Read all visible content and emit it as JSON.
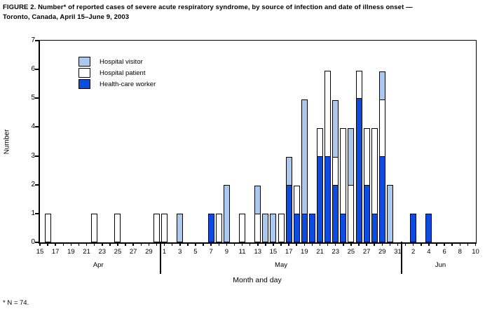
{
  "figure": {
    "title_line1": "FIGURE 2. Number* of reported cases of severe acute respiratory syndrome, by source of infection and date of illness onset —",
    "title_line2": "Toronto, Canada, April 15–June 9, 2003",
    "footnote": "* N = 74."
  },
  "legend": {
    "items": [
      {
        "series": "visitor",
        "label": "Hospital visitor",
        "color": "#abc9ee"
      },
      {
        "series": "patient",
        "label": "Hospital patient",
        "color": "#ffffff"
      },
      {
        "series": "hcw",
        "label": "Health-care worker",
        "color": "#0a4de0"
      }
    ]
  },
  "chart_data": {
    "type": "bar",
    "stacked": true,
    "title": "FIGURE 2. Number* of reported cases of severe acute respiratory syndrome, by source of infection and date of illness onset — Toronto, Canada, April 15–June 9, 2003",
    "xlabel": "Month and day",
    "ylabel": "Number",
    "ylim": [
      0,
      7
    ],
    "yticks": [
      0,
      1,
      2,
      3,
      4,
      5,
      6,
      7
    ],
    "total_n": 74,
    "months": [
      {
        "name": "Apr",
        "first_day": 15,
        "last_day": 30,
        "labeled_days": [
          15,
          17,
          19,
          21,
          23,
          25,
          27,
          29
        ]
      },
      {
        "name": "May",
        "first_day": 1,
        "last_day": 31,
        "labeled_days": [
          1,
          3,
          5,
          7,
          9,
          11,
          13,
          15,
          17,
          19,
          21,
          23,
          25,
          27,
          29,
          31
        ]
      },
      {
        "name": "Jun",
        "first_day": 1,
        "last_day": 10,
        "labeled_days": [
          2,
          4,
          6,
          8,
          10
        ]
      }
    ],
    "series_order_bottom_to_top": [
      "hcw",
      "patient",
      "visitor"
    ],
    "series_names": {
      "hcw": "Health-care worker",
      "patient": "Hospital patient",
      "visitor": "Hospital visitor"
    },
    "colors": {
      "hcw": "#0a4de0",
      "patient": "#ffffff",
      "visitor": "#abc9ee",
      "outline": "#000000"
    },
    "bars": [
      {
        "date": "Apr 16",
        "hcw": 0,
        "patient": 1,
        "visitor": 0
      },
      {
        "date": "Apr 22",
        "hcw": 0,
        "patient": 1,
        "visitor": 0
      },
      {
        "date": "Apr 25",
        "hcw": 0,
        "patient": 1,
        "visitor": 0
      },
      {
        "date": "Apr 30",
        "hcw": 0,
        "patient": 1,
        "visitor": 0
      },
      {
        "date": "May 1",
        "hcw": 0,
        "patient": 1,
        "visitor": 0
      },
      {
        "date": "May 3",
        "hcw": 0,
        "patient": 0,
        "visitor": 1
      },
      {
        "date": "May 7",
        "hcw": 1,
        "patient": 0,
        "visitor": 0
      },
      {
        "date": "May 8",
        "hcw": 0,
        "patient": 1,
        "visitor": 0
      },
      {
        "date": "May 9",
        "hcw": 0,
        "patient": 0,
        "visitor": 2
      },
      {
        "date": "May 11",
        "hcw": 0,
        "patient": 1,
        "visitor": 0
      },
      {
        "date": "May 13",
        "hcw": 0,
        "patient": 1,
        "visitor": 1
      },
      {
        "date": "May 14",
        "hcw": 0,
        "patient": 0,
        "visitor": 1
      },
      {
        "date": "May 15",
        "hcw": 0,
        "patient": 0,
        "visitor": 1
      },
      {
        "date": "May 16",
        "hcw": 0,
        "patient": 1,
        "visitor": 0
      },
      {
        "date": "May 17",
        "hcw": 2,
        "patient": 0,
        "visitor": 1
      },
      {
        "date": "May 18",
        "hcw": 1,
        "patient": 1,
        "visitor": 0
      },
      {
        "date": "May 19",
        "hcw": 1,
        "patient": 0,
        "visitor": 4
      },
      {
        "date": "May 20",
        "hcw": 1,
        "patient": 0,
        "visitor": 0
      },
      {
        "date": "May 21",
        "hcw": 3,
        "patient": 1,
        "visitor": 0
      },
      {
        "date": "May 22",
        "hcw": 3,
        "patient": 3,
        "visitor": 0
      },
      {
        "date": "May 23",
        "hcw": 2,
        "patient": 1,
        "visitor": 2
      },
      {
        "date": "May 24",
        "hcw": 1,
        "patient": 3,
        "visitor": 0
      },
      {
        "date": "May 25",
        "hcw": 0,
        "patient": 2,
        "visitor": 2
      },
      {
        "date": "May 26",
        "hcw": 5,
        "patient": 1,
        "visitor": 0
      },
      {
        "date": "May 27",
        "hcw": 2,
        "patient": 2,
        "visitor": 0
      },
      {
        "date": "May 28",
        "hcw": 1,
        "patient": 3,
        "visitor": 0
      },
      {
        "date": "May 29",
        "hcw": 3,
        "patient": 2,
        "visitor": 1
      },
      {
        "date": "May 30",
        "hcw": 0,
        "patient": 0,
        "visitor": 2
      },
      {
        "date": "Jun 2",
        "hcw": 1,
        "patient": 0,
        "visitor": 0
      },
      {
        "date": "Jun 4",
        "hcw": 1,
        "patient": 0,
        "visitor": 0
      }
    ]
  }
}
